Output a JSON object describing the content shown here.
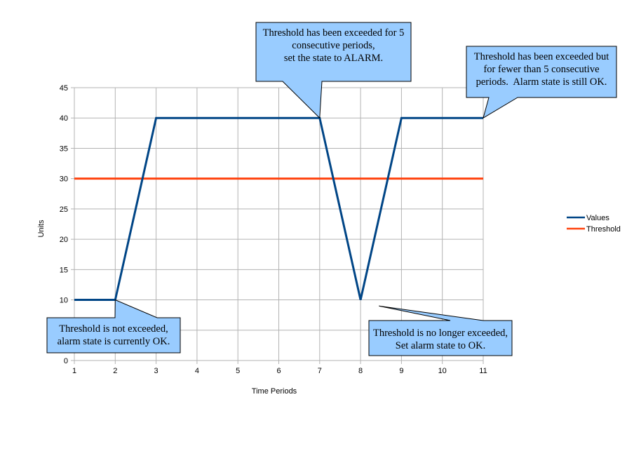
{
  "chart_data": {
    "type": "line",
    "x": [
      1,
      2,
      3,
      4,
      5,
      6,
      7,
      8,
      9,
      10,
      11
    ],
    "series": [
      {
        "name": "Values",
        "color": "#004586",
        "values": [
          10,
          10,
          40,
          40,
          40,
          40,
          40,
          10,
          40,
          40,
          40
        ]
      },
      {
        "name": "Threshold",
        "color": "#ff420e",
        "values": [
          30,
          30,
          30,
          30,
          30,
          30,
          30,
          30,
          30,
          30,
          30
        ]
      }
    ],
    "xlabel": "Time Periods",
    "ylabel": "Units",
    "xlim": [
      1,
      11
    ],
    "ylim": [
      0,
      45
    ],
    "yticks": [
      0,
      5,
      10,
      15,
      20,
      25,
      30,
      35,
      40,
      45
    ],
    "grid": true,
    "legend": "right"
  },
  "callouts": [
    {
      "id": "callout-not-exceeded",
      "point_x": 2,
      "point_y": 10,
      "lines": [
        "Threshold is not exceeded,",
        "alarm state is currently OK."
      ]
    },
    {
      "id": "callout-alarm",
      "point_x": 7,
      "point_y": 40,
      "lines": [
        "Threshold has been exceeded for 5",
        "consecutive periods,",
        "set the state to ALARM."
      ]
    },
    {
      "id": "callout-still-ok",
      "point_x": 11,
      "point_y": 40,
      "lines": [
        "Threshold has been exceeded but",
        "for fewer than 5 consecutive",
        "periods.  Alarm state is still OK."
      ]
    },
    {
      "id": "callout-no-longer",
      "point_x": 8.45,
      "point_y": 9,
      "lines": [
        "Threshold is no longer exceeded,",
        "Set alarm state to OK."
      ]
    }
  ]
}
